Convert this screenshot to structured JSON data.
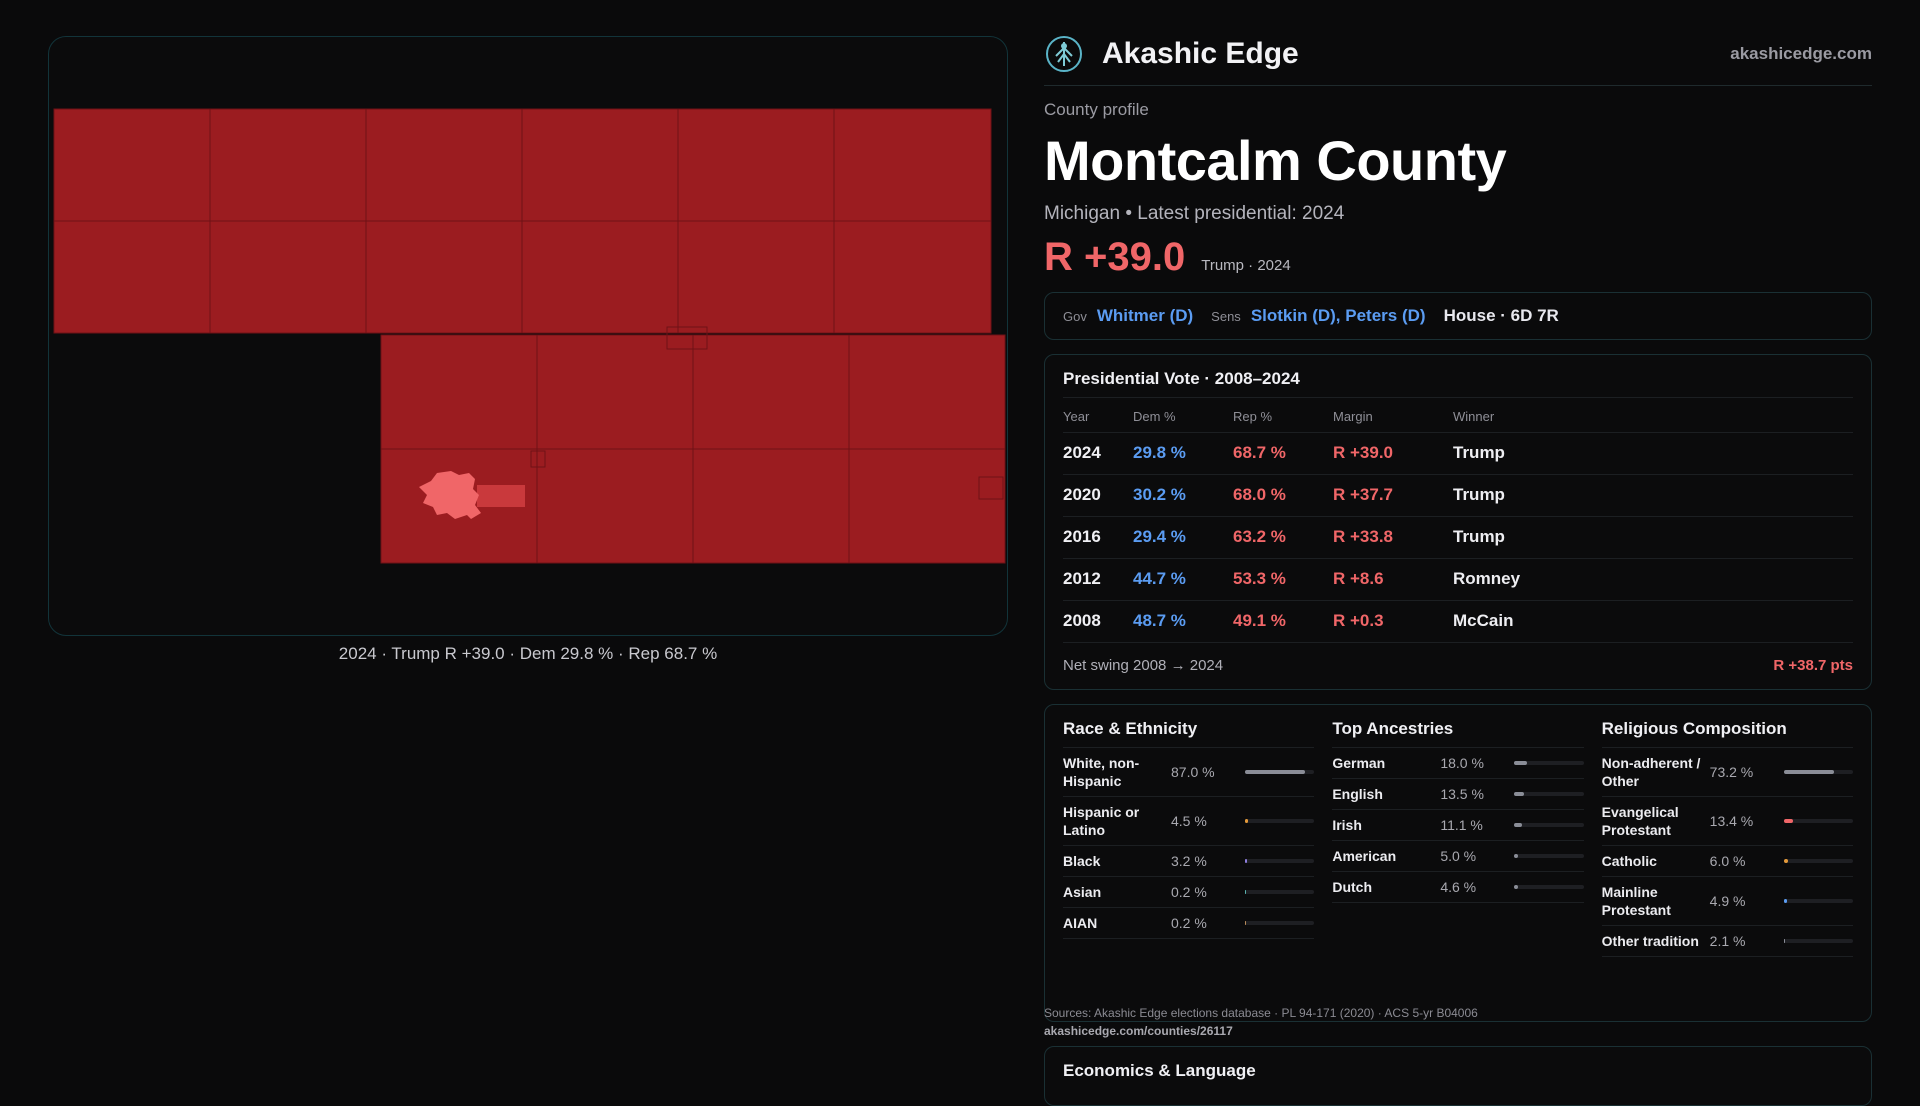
{
  "map": {
    "caption": "2024 · Trump R +39.0 · Dem 29.8 % · Rep 68.7 %",
    "fill_color": "#9b1c20",
    "city_color": "#f06668"
  },
  "brand": {
    "name": "Akashic Edge",
    "domain": "akashicedge.com",
    "logo": "tree-logo-icon"
  },
  "profile": {
    "kicker": "County profile",
    "title": "Montcalm County",
    "subtitle": "Michigan • Latest presidential: 2024",
    "margin": "R +39.0",
    "margin_sub": "Trump · 2024"
  },
  "officials": {
    "gov_label": "Gov",
    "gov": "Whitmer (D)",
    "sens_label": "Sens",
    "sens": "Slotkin (D), Peters (D)",
    "house": "House · 6D 7R"
  },
  "presidential": {
    "title": "Presidential Vote · 2008–2024",
    "headers": [
      "Year",
      "Dem %",
      "Rep %",
      "Margin",
      "Winner"
    ],
    "rows": [
      {
        "year": "2024",
        "dem": "29.8 %",
        "rep": "68.7 %",
        "margin": "R +39.0",
        "winner": "Trump"
      },
      {
        "year": "2020",
        "dem": "30.2 %",
        "rep": "68.0 %",
        "margin": "R +37.7",
        "winner": "Trump"
      },
      {
        "year": "2016",
        "dem": "29.4 %",
        "rep": "63.2 %",
        "margin": "R +33.8",
        "winner": "Trump"
      },
      {
        "year": "2012",
        "dem": "44.7 %",
        "rep": "53.3 %",
        "margin": "R +8.6",
        "winner": "Romney"
      },
      {
        "year": "2008",
        "dem": "48.7 %",
        "rep": "49.1 %",
        "margin": "R +0.3",
        "winner": "McCain"
      }
    ],
    "swing_label": "Net swing 2008 → 2024",
    "swing_value": "R +38.7 pts"
  },
  "race": {
    "title": "Race & Ethnicity",
    "items": [
      {
        "label": "White, non-Hispanic",
        "pct": "87.0 %",
        "value": 87.0,
        "color": "#8a8d97"
      },
      {
        "label": "Hispanic or Latino",
        "pct": "4.5 %",
        "value": 4.5,
        "color": "#e59a3a"
      },
      {
        "label": "Black",
        "pct": "3.2 %",
        "value": 3.2,
        "color": "#8f7fe0"
      },
      {
        "label": "Asian",
        "pct": "0.2 %",
        "value": 0.2,
        "color": "#5ab4b0"
      },
      {
        "label": "AIAN",
        "pct": "0.2 %",
        "value": 0.2,
        "color": "#b98a5a"
      }
    ]
  },
  "ancestry": {
    "title": "Top Ancestries",
    "items": [
      {
        "label": "German",
        "pct": "18.0 %",
        "value": 18.0,
        "color": "#8a8d97"
      },
      {
        "label": "English",
        "pct": "13.5 %",
        "value": 13.5,
        "color": "#8a8d97"
      },
      {
        "label": "Irish",
        "pct": "11.1 %",
        "value": 11.1,
        "color": "#8a8d97"
      },
      {
        "label": "American",
        "pct": "5.0 %",
        "value": 5.0,
        "color": "#8a8d97"
      },
      {
        "label": "Dutch",
        "pct": "4.6 %",
        "value": 4.6,
        "color": "#8a8d97"
      }
    ]
  },
  "religion": {
    "title": "Religious Composition",
    "items": [
      {
        "label": "Non-adherent / Other",
        "pct": "73.2 %",
        "value": 73.2,
        "color": "#8a8d97"
      },
      {
        "label": "Evangelical Protestant",
        "pct": "13.4 %",
        "value": 13.4,
        "color": "#f06668"
      },
      {
        "label": "Catholic",
        "pct": "6.0 %",
        "value": 6.0,
        "color": "#e59a3a"
      },
      {
        "label": "Mainline Protestant",
        "pct": "4.9 %",
        "value": 4.9,
        "color": "#5b9cf2"
      },
      {
        "label": "Other tradition",
        "pct": "2.1 %",
        "value": 2.1,
        "color": "#8a8d97"
      }
    ]
  },
  "sources": {
    "text": "Sources: Akashic Edge elections database · PL 94-171 (2020) · ACS 5-yr B04006",
    "url": "akashicedge.com/counties/26117"
  },
  "econ": {
    "title": "Economics & Language"
  }
}
